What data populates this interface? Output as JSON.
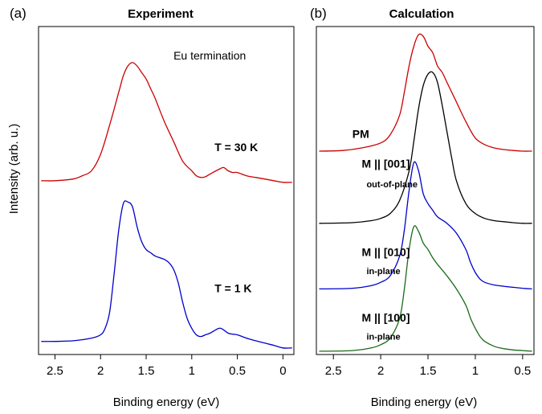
{
  "figure": {
    "y_axis_label": "Intensity (arb. u.)"
  },
  "chart_data": [
    {
      "type": "line",
      "panel_label": "(a)",
      "title": "Experiment",
      "xlabel": "Binding energy (eV)",
      "ylabel": "Intensity (arb. u.)",
      "x_reversed": true,
      "xlim": [
        2.68,
        -0.12
      ],
      "ylim": [
        0,
        10
      ],
      "xticks": [
        2.5,
        2,
        1.5,
        1,
        0.5,
        0
      ],
      "xtick_labels": [
        "2.5",
        "2",
        "1.5",
        "1",
        "0.5",
        "0"
      ],
      "grid": false,
      "annotations": [
        {
          "id": "termination",
          "text": "Eu termination",
          "x": 1.2,
          "y": 9.0,
          "bold": false
        },
        {
          "id": "t30",
          "text": "T = 30 K",
          "x": 0.75,
          "y": 6.2,
          "bold": true
        },
        {
          "id": "t1",
          "text": "T = 1 K",
          "x": 0.75,
          "y": 1.9,
          "bold": true
        }
      ],
      "series": [
        {
          "color": "#cc0000",
          "x": [
            2.65,
            2.5,
            2.3,
            2.2,
            2.1,
            2.0,
            1.9,
            1.8,
            1.75,
            1.7,
            1.65,
            1.6,
            1.55,
            1.5,
            1.45,
            1.4,
            1.3,
            1.2,
            1.1,
            1.0,
            0.95,
            0.9,
            0.85,
            0.8,
            0.7,
            0.65,
            0.6,
            0.55,
            0.5,
            0.4,
            0.3,
            0.2,
            0.1,
            0.0,
            -0.1
          ],
          "y": [
            5.3,
            5.3,
            5.35,
            5.45,
            5.6,
            6.1,
            7.0,
            8.0,
            8.5,
            8.8,
            8.9,
            8.8,
            8.6,
            8.4,
            8.1,
            7.8,
            7.1,
            6.5,
            5.9,
            5.6,
            5.45,
            5.4,
            5.42,
            5.5,
            5.65,
            5.7,
            5.6,
            5.55,
            5.55,
            5.45,
            5.4,
            5.35,
            5.3,
            5.25,
            5.25
          ]
        },
        {
          "color": "#0000cc",
          "x": [
            2.65,
            2.5,
            2.3,
            2.1,
            2.0,
            1.95,
            1.9,
            1.85,
            1.8,
            1.75,
            1.7,
            1.65,
            1.6,
            1.55,
            1.5,
            1.45,
            1.4,
            1.35,
            1.3,
            1.25,
            1.2,
            1.15,
            1.1,
            1.05,
            1.0,
            0.95,
            0.9,
            0.85,
            0.8,
            0.7,
            0.65,
            0.6,
            0.55,
            0.5,
            0.4,
            0.3,
            0.2,
            0.1,
            0.0,
            -0.1
          ],
          "y": [
            0.4,
            0.4,
            0.42,
            0.5,
            0.6,
            0.8,
            1.3,
            2.5,
            3.8,
            4.6,
            4.65,
            4.5,
            3.9,
            3.45,
            3.2,
            3.1,
            3.0,
            2.95,
            2.9,
            2.8,
            2.6,
            2.2,
            1.6,
            1.1,
            0.8,
            0.6,
            0.55,
            0.6,
            0.65,
            0.8,
            0.75,
            0.65,
            0.62,
            0.6,
            0.5,
            0.42,
            0.35,
            0.28,
            0.2,
            0.2
          ]
        }
      ]
    },
    {
      "type": "line",
      "panel_label": "(b)",
      "title": "Calculation",
      "xlabel": "Binding energy (eV)",
      "x_reversed": true,
      "xlim": [
        2.68,
        0.38
      ],
      "ylim": [
        0,
        10
      ],
      "xticks": [
        2.5,
        2,
        1.5,
        1,
        0.5
      ],
      "xtick_labels": [
        "2.5",
        "2",
        "1.5",
        "1",
        "0.5"
      ],
      "grid": false,
      "annotations": [
        {
          "id": "pm",
          "text": "PM",
          "x": 2.3,
          "y": 6.6,
          "bold": true
        },
        {
          "id": "m001",
          "text": "M || [001]",
          "x": 2.2,
          "y": 5.7,
          "bold": true
        },
        {
          "id": "m001_sub",
          "text": "out-of-plane",
          "x": 2.15,
          "y": 5.1,
          "bold": true
        },
        {
          "id": "m010",
          "text": "M || [010]",
          "x": 2.2,
          "y": 3.0,
          "bold": true
        },
        {
          "id": "m010_sub",
          "text": "in-plane",
          "x": 2.15,
          "y": 2.45,
          "bold": true
        },
        {
          "id": "m100",
          "text": "M || [100]",
          "x": 2.2,
          "y": 1.0,
          "bold": true
        },
        {
          "id": "m100_sub",
          "text": "in-plane",
          "x": 2.15,
          "y": 0.45,
          "bold": true
        }
      ],
      "series": [
        {
          "color": "#cc0000",
          "x": [
            2.65,
            2.4,
            2.2,
            2.0,
            1.9,
            1.8,
            1.75,
            1.7,
            1.65,
            1.6,
            1.55,
            1.5,
            1.45,
            1.4,
            1.35,
            1.3,
            1.2,
            1.1,
            1.0,
            0.9,
            0.8,
            0.7,
            0.6,
            0.5,
            0.4
          ],
          "y": [
            6.2,
            6.22,
            6.3,
            6.45,
            6.7,
            7.3,
            8.0,
            8.8,
            9.4,
            9.75,
            9.7,
            9.4,
            9.2,
            8.8,
            8.6,
            8.3,
            7.7,
            7.1,
            6.6,
            6.4,
            6.3,
            6.25,
            6.22,
            6.2,
            6.2
          ]
        },
        {
          "color": "#000000",
          "x": [
            2.65,
            2.3,
            2.1,
            2.0,
            1.9,
            1.8,
            1.7,
            1.65,
            1.6,
            1.55,
            1.5,
            1.45,
            1.4,
            1.35,
            1.3,
            1.25,
            1.2,
            1.1,
            1.0,
            0.9,
            0.8,
            0.7,
            0.6,
            0.5,
            0.4
          ],
          "y": [
            4.0,
            4.02,
            4.08,
            4.15,
            4.3,
            4.7,
            5.6,
            6.5,
            7.5,
            8.2,
            8.55,
            8.6,
            8.3,
            7.6,
            6.8,
            6.0,
            5.3,
            4.6,
            4.3,
            4.15,
            4.08,
            4.05,
            4.02,
            4.0,
            4.0
          ]
        },
        {
          "color": "#0000cc",
          "x": [
            2.65,
            2.3,
            2.1,
            2.0,
            1.9,
            1.8,
            1.75,
            1.7,
            1.65,
            1.6,
            1.55,
            1.5,
            1.45,
            1.4,
            1.3,
            1.2,
            1.1,
            1.05,
            1.0,
            0.95,
            0.9,
            0.8,
            0.7,
            0.6,
            0.5,
            0.4
          ],
          "y": [
            2.0,
            2.02,
            2.1,
            2.2,
            2.4,
            3.0,
            3.8,
            5.0,
            5.85,
            5.6,
            4.9,
            4.6,
            4.4,
            4.2,
            4.0,
            3.7,
            3.2,
            2.8,
            2.5,
            2.3,
            2.2,
            2.12,
            2.08,
            2.05,
            2.02,
            2.0
          ]
        },
        {
          "color": "#1a6b1a",
          "x": [
            2.65,
            2.3,
            2.1,
            2.0,
            1.9,
            1.8,
            1.75,
            1.7,
            1.65,
            1.6,
            1.55,
            1.5,
            1.45,
            1.4,
            1.3,
            1.2,
            1.1,
            1.05,
            1.0,
            0.95,
            0.9,
            0.8,
            0.7,
            0.6,
            0.5,
            0.4
          ],
          "y": [
            0.1,
            0.12,
            0.2,
            0.3,
            0.5,
            1.1,
            2.0,
            3.2,
            3.9,
            3.75,
            3.4,
            3.2,
            2.95,
            2.75,
            2.4,
            2.0,
            1.5,
            1.1,
            0.8,
            0.55,
            0.4,
            0.25,
            0.18,
            0.14,
            0.12,
            0.1
          ]
        }
      ]
    }
  ]
}
